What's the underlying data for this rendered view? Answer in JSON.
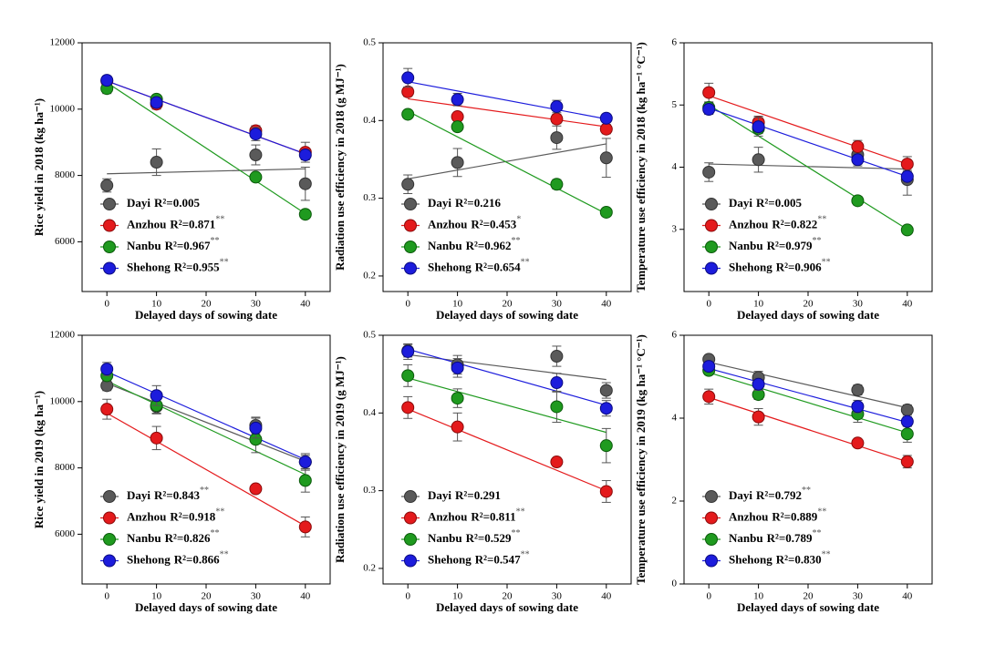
{
  "chart_data": [
    {
      "type": "scatter",
      "xlabel": "Delayed days of sowing date",
      "ylabel": "Rice yield in 2018 (kg ha⁻¹)",
      "x": [
        0,
        10,
        30,
        40
      ],
      "xlim": [
        -5,
        45
      ],
      "xticks": [
        0,
        10,
        20,
        30,
        40
      ],
      "ylim": [
        4500,
        12000
      ],
      "yticks": [
        6000,
        8000,
        10000,
        12000
      ],
      "legend": "lower left",
      "series": [
        {
          "name": "Dayi",
          "r2_label": "R²=0.005",
          "color": "#5a5a5a",
          "values": [
            7700,
            8400,
            8620,
            7750
          ],
          "errors": [
            200,
            400,
            300,
            500
          ],
          "fit": [
            8050,
            8200
          ]
        },
        {
          "name": "Anzhou",
          "r2_label": "R²=0.871",
          "significance": "**",
          "color": "#e41a1c",
          "values": [
            10850,
            10150,
            9350,
            8700
          ],
          "errors": [
            150,
            150,
            150,
            300
          ],
          "fit": [
            10850,
            8650
          ]
        },
        {
          "name": "Nanbu",
          "r2_label": "R²=0.967",
          "significance": "**",
          "color": "#1f9a1f",
          "values": [
            10620,
            10300,
            7950,
            6830
          ],
          "errors": [
            150,
            120,
            100,
            100
          ],
          "fit": [
            10800,
            6850
          ]
        },
        {
          "name": "Shehong",
          "r2_label": "R²=0.955",
          "significance": "**",
          "color": "#1c1cdc",
          "values": [
            10870,
            10200,
            9250,
            8620
          ],
          "errors": [
            120,
            150,
            200,
            150
          ],
          "fit": [
            10850,
            8650
          ]
        }
      ]
    },
    {
      "type": "scatter",
      "xlabel": "Delayed days of sowing date",
      "ylabel": "Radiation use efficiency in 2018 (g MJ⁻¹)",
      "x": [
        0,
        10,
        30,
        40
      ],
      "xlim": [
        -5,
        45
      ],
      "xticks": [
        0,
        10,
        20,
        30,
        40
      ],
      "ylim": [
        0.18,
        0.5
      ],
      "yticks": [
        0.2,
        0.3,
        0.4,
        0.5
      ],
      "legend": "lower left",
      "series": [
        {
          "name": "Dayi",
          "r2_label": "R²=0.216",
          "color": "#5a5a5a",
          "values": [
            0.318,
            0.346,
            0.378,
            0.352
          ],
          "errors": [
            0.012,
            0.018,
            0.015,
            0.025
          ],
          "fit": [
            0.325,
            0.37
          ]
        },
        {
          "name": "Anzhou",
          "r2_label": "R²=0.453",
          "significance": "*",
          "color": "#e41a1c",
          "values": [
            0.437,
            0.405,
            0.402,
            0.389
          ],
          "errors": [
            0.006,
            0.004,
            0.006,
            0.006
          ],
          "fit": [
            0.428,
            0.392
          ]
        },
        {
          "name": "Nanbu",
          "r2_label": "R²=0.962",
          "significance": "**",
          "color": "#1f9a1f",
          "values": [
            0.408,
            0.392,
            0.318,
            0.282
          ],
          "errors": [
            0.004,
            0.005,
            0.006,
            0.004
          ],
          "fit": [
            0.412,
            0.28
          ]
        },
        {
          "name": "Shehong",
          "r2_label": "R²=0.654",
          "significance": "**",
          "color": "#1c1cdc",
          "values": [
            0.455,
            0.427,
            0.418,
            0.403
          ],
          "errors": [
            0.012,
            0.008,
            0.008,
            0.005
          ],
          "fit": [
            0.45,
            0.402
          ]
        }
      ]
    },
    {
      "type": "scatter",
      "xlabel": "Delayed days of sowing date",
      "ylabel": "Temperature use efficiency in 2018 (kg ha⁻¹ °C⁻¹)",
      "x": [
        0,
        10,
        30,
        40
      ],
      "xlim": [
        -5,
        45
      ],
      "xticks": [
        0,
        10,
        20,
        30,
        40
      ],
      "ylim": [
        2,
        6
      ],
      "yticks": [
        3,
        4,
        5,
        6
      ],
      "legend": "lower left",
      "series": [
        {
          "name": "Dayi",
          "r2_label": "R²=0.005",
          "color": "#5a5a5a",
          "values": [
            3.92,
            4.12,
            4.2,
            3.8
          ],
          "errors": [
            0.15,
            0.2,
            0.15,
            0.25
          ],
          "fit": [
            4.05,
            3.97
          ]
        },
        {
          "name": "Anzhou",
          "r2_label": "R²=0.822",
          "significance": "**",
          "color": "#e41a1c",
          "values": [
            5.2,
            4.72,
            4.33,
            4.05
          ],
          "errors": [
            0.15,
            0.1,
            0.1,
            0.12
          ],
          "fit": [
            5.15,
            4.05
          ]
        },
        {
          "name": "Nanbu",
          "r2_label": "R²=0.979",
          "significance": "**",
          "color": "#1f9a1f",
          "values": [
            4.96,
            4.62,
            3.46,
            2.99
          ],
          "errors": [
            0.08,
            0.08,
            0.07,
            0.04
          ],
          "fit": [
            5.0,
            3.0
          ]
        },
        {
          "name": "Shehong",
          "r2_label": "R²=0.906",
          "significance": "**",
          "color": "#1c1cdc",
          "values": [
            4.93,
            4.65,
            4.12,
            3.85
          ],
          "errors": [
            0.08,
            0.15,
            0.1,
            0.1
          ],
          "fit": [
            4.95,
            3.85
          ]
        }
      ]
    },
    {
      "type": "scatter",
      "xlabel": "Delayed days of sowing date",
      "ylabel": "Rice yield in 2019 (kg ha⁻¹)",
      "x": [
        0,
        10,
        30,
        40
      ],
      "xlim": [
        -5,
        45
      ],
      "xticks": [
        0,
        10,
        20,
        30,
        40
      ],
      "ylim": [
        4500,
        12000
      ],
      "yticks": [
        6000,
        8000,
        10000,
        12000
      ],
      "legend": "lower left",
      "series": [
        {
          "name": "Dayi",
          "r2_label": "R²=0.843",
          "significance": "**",
          "color": "#5a5a5a",
          "values": [
            10480,
            9850,
            9280,
            8180
          ],
          "errors": [
            150,
            200,
            250,
            200
          ],
          "fit": [
            10550,
            8200
          ]
        },
        {
          "name": "Anzhou",
          "r2_label": "R²=0.918",
          "significance": "**",
          "color": "#e41a1c",
          "values": [
            9770,
            8900,
            7370,
            6220
          ],
          "errors": [
            300,
            350,
            100,
            300
          ],
          "fit": [
            9650,
            6250
          ]
        },
        {
          "name": "Nanbu",
          "r2_label": "R²=0.826",
          "significance": "**",
          "color": "#1f9a1f",
          "values": [
            10780,
            9880,
            8860,
            7620
          ],
          "errors": [
            200,
            250,
            400,
            350
          ],
          "fit": [
            10620,
            7800
          ]
        },
        {
          "name": "Shehong",
          "r2_label": "R²=0.866",
          "significance": "**",
          "color": "#1c1cdc",
          "values": [
            10980,
            10180,
            9200,
            8180
          ],
          "errors": [
            200,
            300,
            300,
            250
          ],
          "fit": [
            10900,
            8250
          ]
        }
      ]
    },
    {
      "type": "scatter",
      "xlabel": "Delayed days of sowing date",
      "ylabel": "Radiation use efficiency in 2019 (g MJ⁻¹)",
      "x": [
        0,
        10,
        30,
        40
      ],
      "xlim": [
        -5,
        45
      ],
      "xticks": [
        0,
        10,
        20,
        30,
        40
      ],
      "ylim": [
        0.18,
        0.5
      ],
      "yticks": [
        0.2,
        0.3,
        0.4,
        0.5
      ],
      "legend": "lower left",
      "series": [
        {
          "name": "Dayi",
          "r2_label": "R²=0.291",
          "color": "#5a5a5a",
          "values": [
            0.48,
            0.462,
            0.473,
            0.429
          ],
          "errors": [
            0.008,
            0.012,
            0.013,
            0.01
          ],
          "fit": [
            0.475,
            0.443
          ]
        },
        {
          "name": "Anzhou",
          "r2_label": "R²=0.811",
          "significance": "**",
          "color": "#e41a1c",
          "values": [
            0.407,
            0.382,
            0.337,
            0.299
          ],
          "errors": [
            0.014,
            0.018,
            0.004,
            0.014
          ],
          "fit": [
            0.405,
            0.3
          ]
        },
        {
          "name": "Nanbu",
          "r2_label": "R²=0.529",
          "significance": "**",
          "color": "#1f9a1f",
          "values": [
            0.448,
            0.419,
            0.408,
            0.358
          ],
          "errors": [
            0.014,
            0.012,
            0.02,
            0.022
          ],
          "fit": [
            0.445,
            0.375
          ]
        },
        {
          "name": "Shehong",
          "r2_label": "R²=0.547",
          "significance": "**",
          "color": "#1c1cdc",
          "values": [
            0.479,
            0.458,
            0.439,
            0.406
          ],
          "errors": [
            0.01,
            0.012,
            0.012,
            0.01
          ],
          "fit": [
            0.482,
            0.41
          ]
        }
      ]
    },
    {
      "type": "scatter",
      "xlabel": "Delayed days of sowing date",
      "ylabel": "Temperature use efficiency in 2019 (kg ha⁻¹ °C⁻¹)",
      "x": [
        0,
        10,
        30,
        40
      ],
      "xlim": [
        -5,
        45
      ],
      "xticks": [
        0,
        10,
        20,
        30,
        40
      ],
      "ylim": [
        0,
        6
      ],
      "yticks": [
        0,
        2,
        4,
        6
      ],
      "legend": "lower left",
      "series": [
        {
          "name": "Dayi",
          "r2_label": "R²=0.792",
          "significance": "**",
          "color": "#5a5a5a",
          "values": [
            5.42,
            4.98,
            4.68,
            4.2
          ],
          "errors": [
            0.1,
            0.15,
            0.12,
            0.12
          ],
          "fit": [
            5.35,
            4.25
          ]
        },
        {
          "name": "Anzhou",
          "r2_label": "R²=0.889",
          "significance": "**",
          "color": "#e41a1c",
          "values": [
            4.52,
            4.03,
            3.4,
            2.95
          ],
          "errors": [
            0.18,
            0.2,
            0.05,
            0.15
          ],
          "fit": [
            4.5,
            2.95
          ]
        },
        {
          "name": "Nanbu",
          "r2_label": "R²=0.789",
          "significance": "**",
          "color": "#1f9a1f",
          "values": [
            5.15,
            4.57,
            4.1,
            3.62
          ],
          "errors": [
            0.1,
            0.12,
            0.2,
            0.2
          ],
          "fit": [
            5.1,
            3.65
          ]
        },
        {
          "name": "Shehong",
          "r2_label": "R²=0.830",
          "significance": "**",
          "color": "#1c1cdc",
          "values": [
            5.25,
            4.82,
            4.28,
            3.92
          ],
          "errors": [
            0.1,
            0.15,
            0.15,
            0.12
          ],
          "fit": [
            5.2,
            3.9
          ]
        }
      ]
    }
  ]
}
